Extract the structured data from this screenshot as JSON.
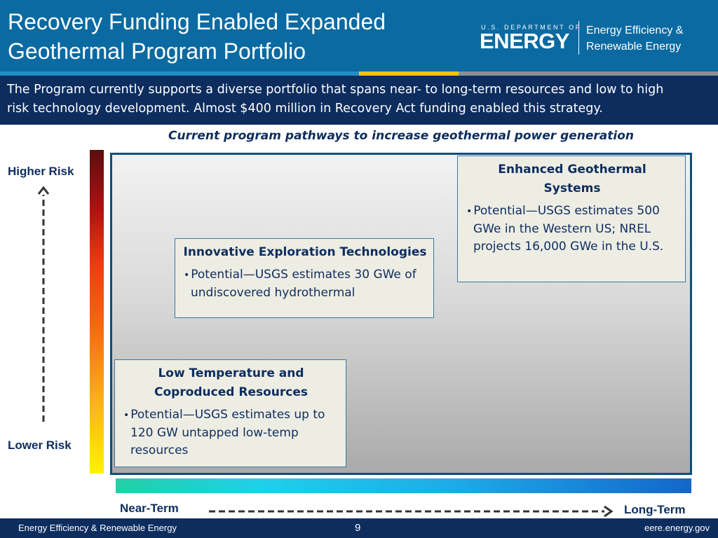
{
  "header": {
    "title_line1": "Recovery Funding Enabled Expanded",
    "title_line2": "Geothermal Program Portfolio",
    "logo_dept": "U.S. DEPARTMENT OF",
    "logo_word": "ENERGY",
    "logo_eere_line1": "Energy Efficiency &",
    "logo_eere_line2": "Renewable Energy"
  },
  "intro": {
    "line1": "The Program currently supports a diverse portfolio that spans near- to long-term resources and low to high",
    "line2": "risk technology development.  Almost $400 million in Recovery Act funding enabled this strategy."
  },
  "diagram": {
    "subtitle": "Current program pathways to increase geothermal power generation",
    "y_axis": {
      "top_label": "Higher Risk",
      "bottom_label": "Lower Risk"
    },
    "x_axis": {
      "left_label": "Near-Term",
      "right_label": "Long-Term"
    },
    "boxes": {
      "egs": {
        "title_line1": "Enhanced Geothermal",
        "title_line2": "Systems",
        "bullet": "Potential—USGS estimates 500 GWe in the Western US; NREL projects 16,000 GWe in the U.S."
      },
      "iet": {
        "title_line1": "Innovative Exploration Technologies",
        "bullet": "Potential—USGS estimates 30 GWe of undiscovered hydrothermal"
      },
      "ltc": {
        "title_line1": "Low Temperature and",
        "title_line2": "Coproduced Resources",
        "bullet": "Potential—USGS estimates up to 120 GW untapped low-temp resources"
      }
    },
    "colors": {
      "risk_gradient": [
        "#5a0d0f",
        "#b01010",
        "#f03a10",
        "#f76a10",
        "#fbb218",
        "#fff200"
      ],
      "term_gradient": [
        "#22d0a4",
        "#1fd0ea",
        "#1ea9e6",
        "#1466c8"
      ],
      "navy": "#0d2d5e",
      "header_blue": "#0a6aa1"
    }
  },
  "footer": {
    "left": "Energy Efficiency & Renewable Energy",
    "page": "9",
    "right": "eere.energy.gov"
  }
}
